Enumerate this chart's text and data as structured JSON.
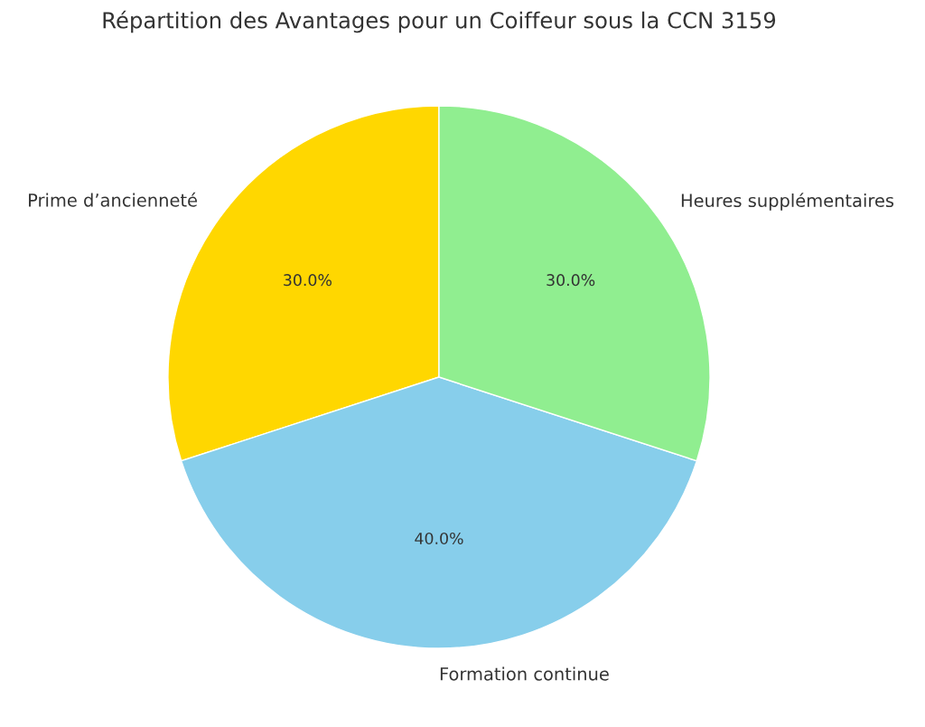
{
  "chart_data": {
    "type": "pie",
    "title": "Répartition des Avantages pour un Coiffeur sous la CCN 3159",
    "categories": [
      "Prime d’ancienneté",
      "Formation continue",
      "Heures supplémentaires"
    ],
    "values": [
      30,
      40,
      30
    ],
    "value_labels": [
      "30.0%",
      "40.0%",
      "30.0%"
    ],
    "colors": [
      "#ffd700",
      "#87ceeb",
      "#90ee90"
    ]
  }
}
